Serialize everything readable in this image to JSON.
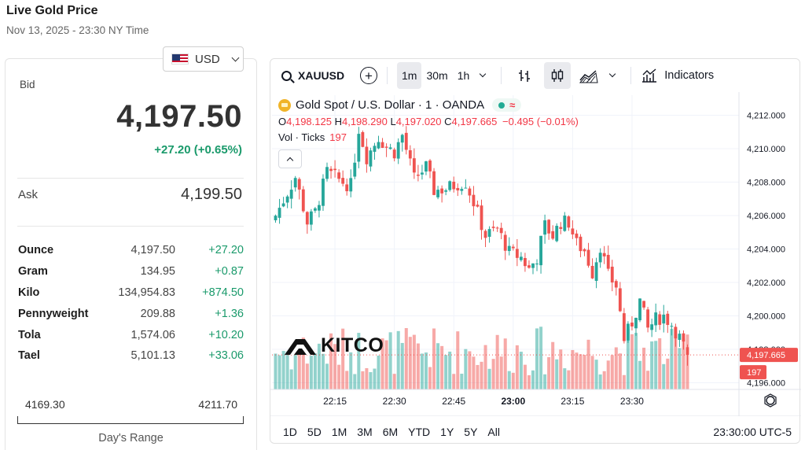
{
  "page": {
    "title": "Live Gold Price",
    "subtitle": "Nov 13, 2025 - 23:30 NY Time"
  },
  "currency": {
    "selected": "USD",
    "flag_icon": "us-flag-icon"
  },
  "bid": {
    "label": "Bid",
    "value": "4,197.50",
    "change": "+27.20 (+0.65%)"
  },
  "ask": {
    "label": "Ask",
    "value": "4,199.50"
  },
  "units": [
    {
      "name": "Ounce",
      "price": "4,197.50",
      "change": "+27.20"
    },
    {
      "name": "Gram",
      "price": "134.95",
      "change": "+0.87"
    },
    {
      "name": "Kilo",
      "price": "134,954.83",
      "change": "+874.50"
    },
    {
      "name": "Pennyweight",
      "price": "209.88",
      "change": "+1.36"
    },
    {
      "name": "Tola",
      "price": "1,574.06",
      "change": "+10.20"
    },
    {
      "name": "Tael",
      "price": "5,101.13",
      "change": "+33.06"
    }
  ],
  "days_range": {
    "low": "4169.30",
    "high": "4211.70",
    "label": "Day's Range"
  },
  "toolbar": {
    "symbol": "XAUUSD",
    "intervals": [
      "1m",
      "30m",
      "1h"
    ],
    "active_interval": "1m",
    "indicators_label": "Indicators"
  },
  "legend": {
    "title": "Gold Spot / U.S. Dollar · 1 · OANDA",
    "o_label": "O",
    "o": "4,198.125",
    "h_label": "H",
    "h": "4,198.290",
    "l_label": "L",
    "l": "4,197.020",
    "c_label": "C",
    "c": "4,197.665",
    "change": "−0.495 (−0.01%)",
    "vol_label": "Vol · Ticks",
    "vol": "197"
  },
  "watermark": "KITCO",
  "ranges": [
    "1D",
    "5D",
    "1M",
    "3M",
    "6M",
    "YTD",
    "1Y",
    "5Y",
    "All"
  ],
  "time_display": "23:30:00 UTC-5",
  "colors": {
    "up": "#26a69a",
    "down": "#ef5350",
    "positive_text": "#1a9a6b"
  },
  "chart_data": {
    "type": "candlestick",
    "y_ticks": [
      "4,212.000",
      "4,210.000",
      "4,208.000",
      "4,206.000",
      "4,204.000",
      "4,202.000",
      "4,200.000",
      "4,198.000",
      "4,196.000"
    ],
    "x_ticks": [
      "22:15",
      "22:30",
      "22:45",
      "23:00",
      "23:15",
      "23:30"
    ],
    "ylim": [
      4195.6,
      4213.2
    ],
    "last_price_label": "4,197.665",
    "last_volume_label": "197",
    "close_points": [
      [
        0,
        4206.0
      ],
      [
        5,
        4208.3
      ],
      [
        8,
        4205.6
      ],
      [
        10,
        4206.2
      ],
      [
        13,
        4208.6
      ],
      [
        17,
        4208.0
      ],
      [
        19,
        4207.8
      ],
      [
        21,
        4211.2
      ],
      [
        23,
        4209.5
      ],
      [
        26,
        4210.7
      ],
      [
        28,
        4210.1
      ],
      [
        30,
        4209.8
      ],
      [
        32,
        4210.8
      ],
      [
        35,
        4208.2
      ],
      [
        38,
        4208.9
      ],
      [
        40,
        4207.5
      ],
      [
        43,
        4207.6
      ],
      [
        46,
        4207.9
      ],
      [
        48,
        4208.0
      ],
      [
        50,
        4206.8
      ],
      [
        53,
        4204.8
      ],
      [
        56,
        4205.2
      ],
      [
        59,
        4203.8
      ],
      [
        62,
        4203.5
      ],
      [
        64,
        4202.8
      ],
      [
        66,
        4203.5
      ],
      [
        68,
        4205.4
      ],
      [
        70,
        4204.8
      ],
      [
        72,
        4205.6
      ],
      [
        74,
        4205.6
      ],
      [
        76,
        4204.3
      ],
      [
        78,
        4203.9
      ],
      [
        80,
        4202.6
      ],
      [
        82,
        4204.2
      ],
      [
        84,
        4202.4
      ],
      [
        86,
        4201.8
      ],
      [
        88,
        4198.6
      ],
      [
        90,
        4199.6
      ],
      [
        92,
        4200.9
      ],
      [
        94,
        4199.2
      ],
      [
        96,
        4199.8
      ],
      [
        98,
        4200.0
      ],
      [
        100,
        4199.5
      ],
      [
        102,
        4198.7
      ],
      [
        104,
        4197.665
      ]
    ],
    "last_bar_ohlc": {
      "o": 4198.125,
      "h": 4198.29,
      "l": 4197.02,
      "c": 4197.665
    },
    "last_bar_volume": 197
  }
}
